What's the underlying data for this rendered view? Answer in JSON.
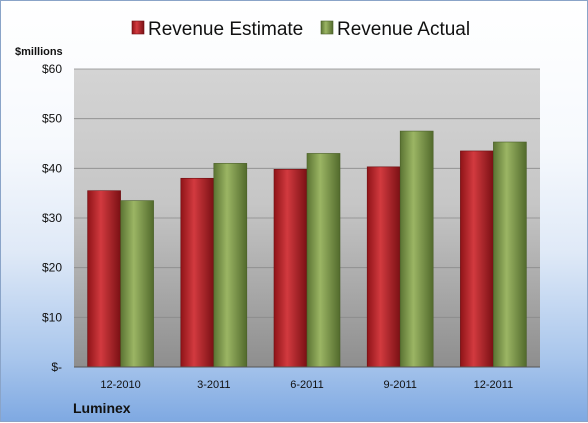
{
  "chart_data": {
    "type": "bar",
    "categories": [
      "12-2010",
      "3-2011",
      "6-2011",
      "9-2011",
      "12-2011"
    ],
    "series": [
      {
        "name": "Revenue Estimate",
        "values": [
          35.5,
          38.0,
          39.8,
          40.3,
          43.5
        ]
      },
      {
        "name": "Revenue Actual",
        "values": [
          33.5,
          41.0,
          43.0,
          47.5,
          45.3
        ]
      }
    ],
    "ylabel": "$millions",
    "ylim": [
      0,
      60
    ],
    "yticks": [
      0,
      10,
      20,
      30,
      40,
      50,
      60
    ],
    "ytick_labels": [
      "$-",
      "$10",
      "$20",
      "$30",
      "$40",
      "$50",
      "$60"
    ],
    "legend": "top",
    "grid": true,
    "colors": {
      "estimate": "#c0272d",
      "actual": "#7e9b4a"
    }
  },
  "footer": {
    "company": "Luminex"
  }
}
